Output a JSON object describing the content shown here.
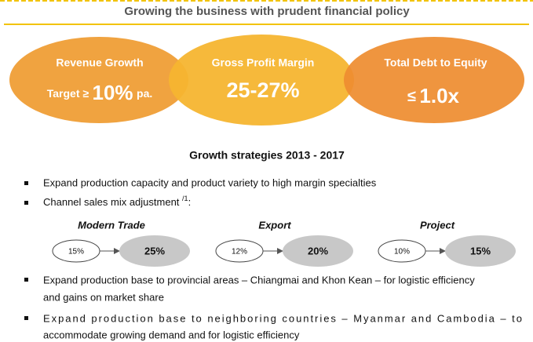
{
  "header": {
    "title": "Growing the business with prudent financial policy"
  },
  "highlights": [
    {
      "title": "Revenue Growth",
      "prefix": "Target ≥",
      "value": "10%",
      "suffix": "pa."
    },
    {
      "title": "Gross Profit Margin",
      "value": "25-27%"
    },
    {
      "title": "Total Debt to Equity",
      "prefix": "≤",
      "value": "1.0x"
    }
  ],
  "strategies": {
    "title": "Growth strategies 2013 - 2017",
    "bullet1": "Expand production capacity and  product variety to high margin specialties",
    "bullet2": {
      "text": "Channel sales mix adjustment",
      "note": "/1",
      "colon": ":"
    },
    "channels": [
      {
        "name": "Modern Trade",
        "from": "15%",
        "to": "25%"
      },
      {
        "name": "Export",
        "from": "12%",
        "to": "20%"
      },
      {
        "name": "Project",
        "from": "10%",
        "to": "15%"
      }
    ],
    "bullet3": [
      "Expand production base to provincial areas – Chiangmai and Khon Kean – for logistic efficiency",
      "and gains on market share"
    ],
    "bullet4": [
      "Expand production base to neighboring countries – Myanmar and Cambodia – to",
      "accommodate growing demand and for logistic efficiency"
    ]
  }
}
